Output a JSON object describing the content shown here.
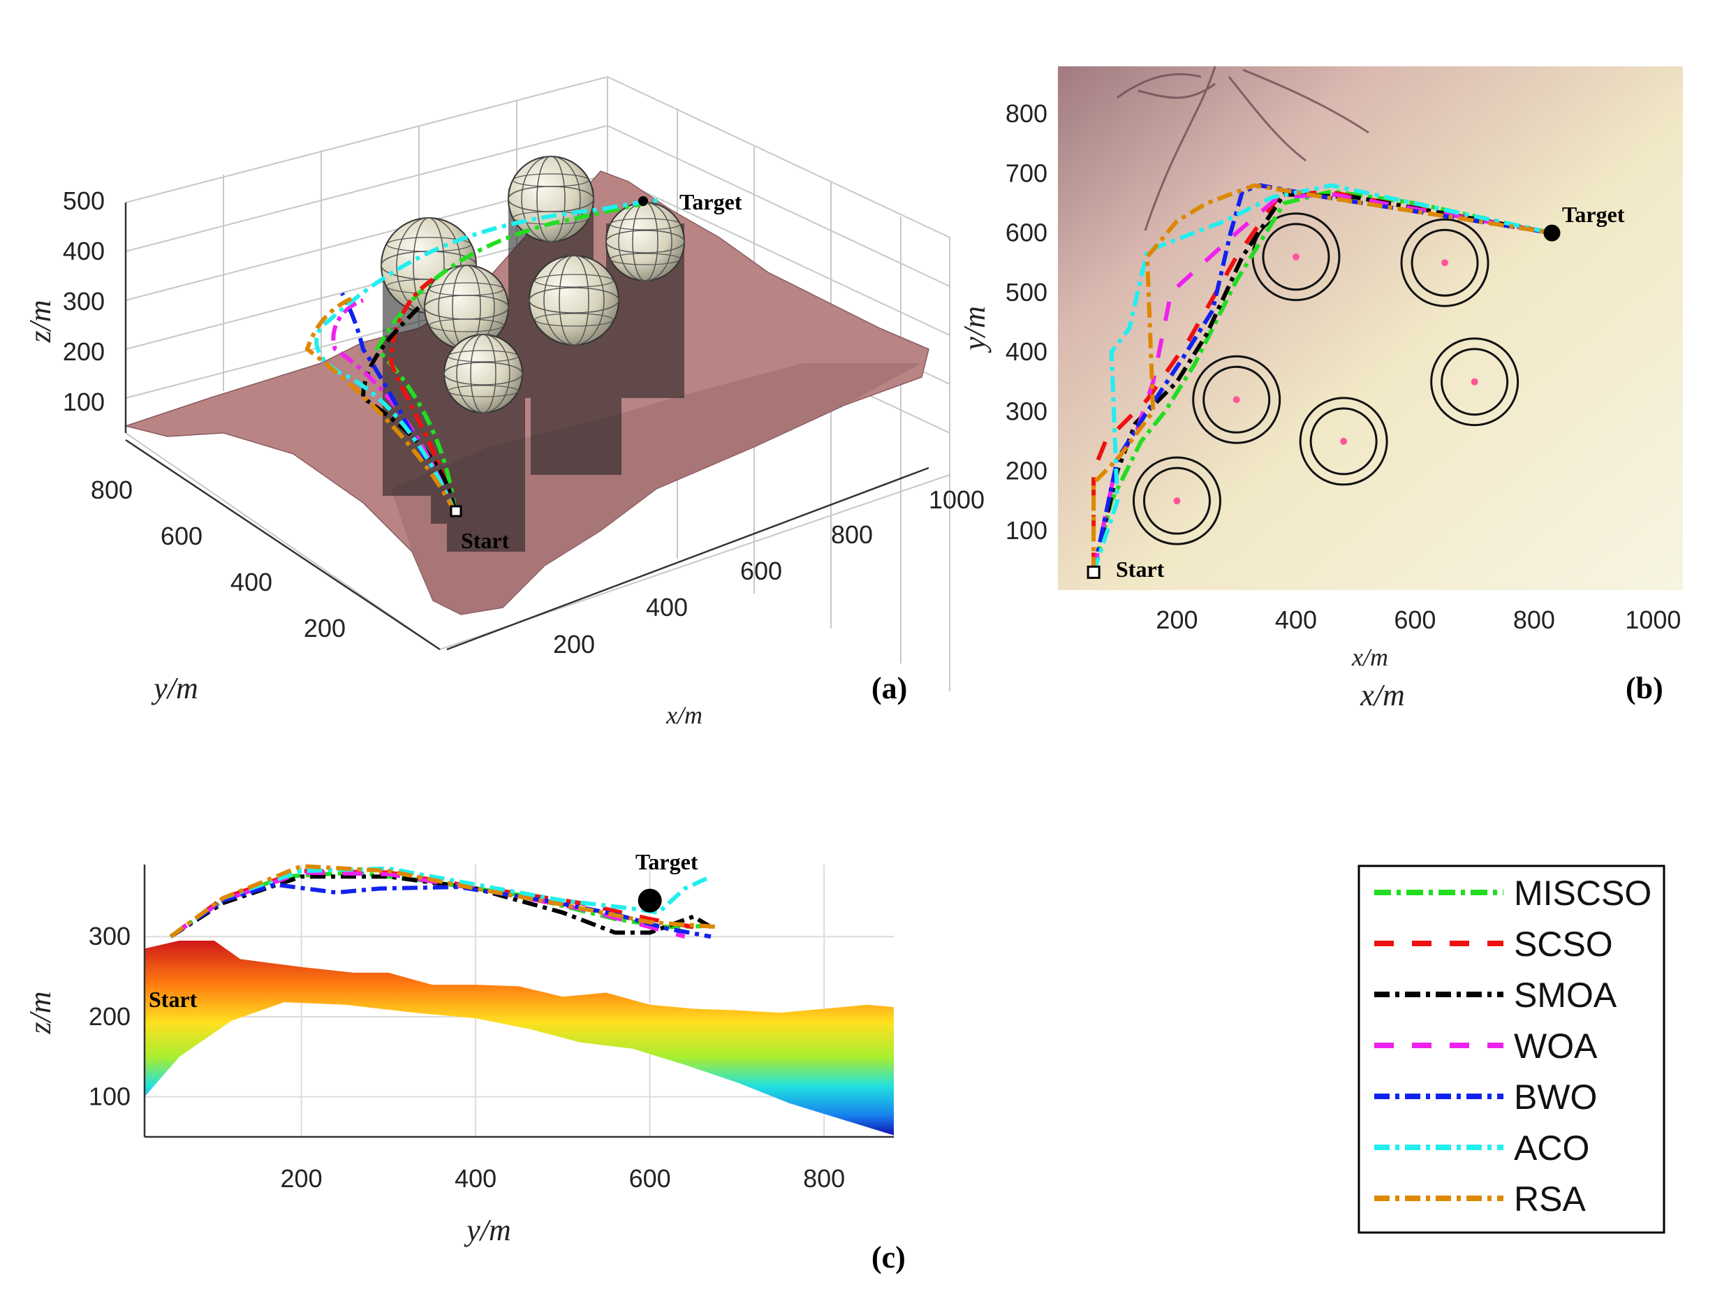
{
  "colors": {
    "MISCSO": "#22dd22",
    "SCSO": "#ee1111",
    "SMOA": "#000000",
    "WOA": "#ee22ee",
    "BWO": "#1122ee",
    "ACO": "#22eeee",
    "RSA": "#dd8800",
    "terrain3d": "#b98484",
    "map_light": "#f3ecc4",
    "map_dark": "#8c5a62",
    "obstacle": "#e8e5d6"
  },
  "chart_data": [
    {
      "type": "line",
      "panel": "(a)",
      "title": "",
      "xlabel": "x/m",
      "ylabel": "y/m",
      "zlabel": "z/m",
      "x_ticks": [
        "200",
        "400",
        "600",
        "800",
        "1000"
      ],
      "y_ticks": [
        "200",
        "400",
        "600",
        "800"
      ],
      "z_ticks": [
        "100",
        "200",
        "300",
        "400",
        "500"
      ],
      "annotations": [
        "Start",
        "Target"
      ],
      "obstacles_xy": [
        [
          200,
          150
        ],
        [
          300,
          320
        ],
        [
          480,
          250
        ],
        [
          700,
          350
        ],
        [
          400,
          560
        ],
        [
          650,
          550
        ]
      ],
      "series": [
        "MISCSO",
        "SCSO",
        "SMOA",
        "WOA",
        "BWO",
        "ACO",
        "RSA"
      ]
    },
    {
      "type": "line",
      "panel": "(b)",
      "title": "",
      "xlabel": "x/m",
      "ylabel": "y/m",
      "xlim": [
        0,
        1050
      ],
      "ylim": [
        0,
        880
      ],
      "x_ticks": [
        200,
        400,
        600,
        800,
        1000
      ],
      "y_ticks": [
        100,
        200,
        300,
        400,
        500,
        600,
        700,
        800
      ],
      "start": [
        60,
        30
      ],
      "target": [
        830,
        600
      ],
      "annotations": [
        "Start",
        "Target"
      ],
      "obstacles": [
        [
          200,
          150
        ],
        [
          300,
          320
        ],
        [
          480,
          250
        ],
        [
          700,
          350
        ],
        [
          400,
          560
        ],
        [
          650,
          550
        ]
      ],
      "series": [
        {
          "name": "MISCSO",
          "points": [
            [
              60,
              30
            ],
            [
              90,
              150
            ],
            [
              140,
              250
            ],
            [
              180,
              300
            ],
            [
              230,
              380
            ],
            [
              300,
              520
            ],
            [
              380,
              650
            ],
            [
              460,
              670
            ],
            [
              600,
              650
            ],
            [
              830,
              600
            ]
          ]
        },
        {
          "name": "SCSO",
          "points": [
            [
              60,
              30
            ],
            [
              60,
              200
            ],
            [
              80,
              250
            ],
            [
              150,
              320
            ],
            [
              220,
              420
            ],
            [
              300,
              560
            ],
            [
              370,
              660
            ],
            [
              450,
              670
            ],
            [
              830,
              600
            ]
          ]
        },
        {
          "name": "SMOA",
          "points": [
            [
              60,
              30
            ],
            [
              100,
              200
            ],
            [
              130,
              280
            ],
            [
              200,
              350
            ],
            [
              250,
              430
            ],
            [
              310,
              560
            ],
            [
              380,
              665
            ],
            [
              500,
              660
            ],
            [
              830,
              600
            ]
          ]
        },
        {
          "name": "WOA",
          "points": [
            [
              60,
              30
            ],
            [
              100,
              220
            ],
            [
              130,
              260
            ],
            [
              160,
              350
            ],
            [
              190,
              500
            ],
            [
              300,
              600
            ],
            [
              370,
              660
            ],
            [
              460,
              665
            ],
            [
              830,
              600
            ]
          ]
        },
        {
          "name": "BWO",
          "points": [
            [
              60,
              30
            ],
            [
              100,
              220
            ],
            [
              150,
              300
            ],
            [
              210,
              390
            ],
            [
              260,
              470
            ],
            [
              290,
              600
            ],
            [
              310,
              670
            ],
            [
              340,
              680
            ],
            [
              450,
              660
            ],
            [
              830,
              600
            ]
          ]
        },
        {
          "name": "ACO",
          "points": [
            [
              60,
              30
            ],
            [
              100,
              150
            ],
            [
              90,
              400
            ],
            [
              120,
              440
            ],
            [
              150,
              570
            ],
            [
              280,
              620
            ],
            [
              360,
              660
            ],
            [
              460,
              680
            ],
            [
              830,
              600
            ]
          ]
        },
        {
          "name": "RSA",
          "points": [
            [
              60,
              30
            ],
            [
              60,
              180
            ],
            [
              100,
              220
            ],
            [
              160,
              300
            ],
            [
              150,
              560
            ],
            [
              200,
              620
            ],
            [
              250,
              650
            ],
            [
              330,
              680
            ],
            [
              450,
              660
            ],
            [
              830,
              600
            ]
          ]
        }
      ]
    },
    {
      "type": "line",
      "panel": "(c)",
      "title": "",
      "xlabel": "y/m",
      "ylabel": "z/m",
      "xlim": [
        20,
        880
      ],
      "ylim": [
        50,
        390
      ],
      "x_ticks": [
        200,
        400,
        600,
        800
      ],
      "y_ticks": [
        100,
        200,
        300
      ],
      "start": [
        50,
        300
      ],
      "target": [
        600,
        345
      ],
      "annotations": [
        "Start",
        "Target"
      ],
      "terrain_top": [
        [
          20,
          285
        ],
        [
          60,
          295
        ],
        [
          100,
          295
        ],
        [
          130,
          272
        ],
        [
          200,
          262
        ],
        [
          260,
          255
        ],
        [
          300,
          255
        ],
        [
          350,
          240
        ],
        [
          400,
          240
        ],
        [
          450,
          238
        ],
        [
          500,
          225
        ],
        [
          550,
          230
        ],
        [
          600,
          215
        ],
        [
          650,
          210
        ],
        [
          700,
          208
        ],
        [
          750,
          205
        ],
        [
          800,
          210
        ],
        [
          850,
          215
        ],
        [
          880,
          212
        ]
      ],
      "terrain_bottom": [
        [
          20,
          100
        ],
        [
          60,
          150
        ],
        [
          120,
          195
        ],
        [
          180,
          218
        ],
        [
          250,
          215
        ],
        [
          330,
          205
        ],
        [
          400,
          198
        ],
        [
          460,
          185
        ],
        [
          520,
          168
        ],
        [
          580,
          160
        ],
        [
          640,
          140
        ],
        [
          700,
          118
        ],
        [
          760,
          92
        ],
        [
          820,
          72
        ],
        [
          880,
          52
        ]
      ],
      "series": [
        {
          "name": "MISCSO",
          "points": [
            [
              50,
              300
            ],
            [
              110,
              345
            ],
            [
              180,
              375
            ],
            [
              260,
              380
            ],
            [
              340,
              370
            ],
            [
              450,
              352
            ],
            [
              560,
              322
            ],
            [
              620,
              312
            ],
            [
              660,
              313
            ]
          ]
        },
        {
          "name": "SCSO",
          "points": [
            [
              50,
              300
            ],
            [
              110,
              348
            ],
            [
              200,
              382
            ],
            [
              300,
              380
            ],
            [
              400,
              362
            ],
            [
              520,
              342
            ],
            [
              600,
              322
            ],
            [
              650,
              312
            ]
          ]
        },
        {
          "name": "SMOA",
          "points": [
            [
              50,
              300
            ],
            [
              110,
              342
            ],
            [
              200,
              375
            ],
            [
              300,
              375
            ],
            [
              400,
              360
            ],
            [
              500,
              330
            ],
            [
              560,
              305
            ],
            [
              600,
              305
            ],
            [
              650,
              325
            ],
            [
              670,
              312
            ]
          ]
        },
        {
          "name": "WOA",
          "points": [
            [
              50,
              300
            ],
            [
              110,
              345
            ],
            [
              200,
              380
            ],
            [
              300,
              378
            ],
            [
              400,
              360
            ],
            [
              520,
              335
            ],
            [
              600,
              312
            ],
            [
              640,
              300
            ]
          ]
        },
        {
          "name": "BWO",
          "points": [
            [
              50,
              300
            ],
            [
              110,
              345
            ],
            [
              170,
              365
            ],
            [
              240,
              355
            ],
            [
              290,
              360
            ],
            [
              380,
              362
            ],
            [
              480,
              345
            ],
            [
              560,
              328
            ],
            [
              620,
              310
            ],
            [
              670,
              300
            ]
          ]
        },
        {
          "name": "ACO",
          "points": [
            [
              50,
              300
            ],
            [
              110,
              348
            ],
            [
              200,
              382
            ],
            [
              300,
              385
            ],
            [
              400,
              365
            ],
            [
              500,
              345
            ],
            [
              580,
              335
            ],
            [
              610,
              330
            ],
            [
              640,
              360
            ],
            [
              670,
              375
            ]
          ]
        },
        {
          "name": "RSA",
          "points": [
            [
              50,
              300
            ],
            [
              110,
              348
            ],
            [
              200,
              388
            ],
            [
              300,
              382
            ],
            [
              400,
              360
            ],
            [
              500,
              340
            ],
            [
              600,
              318
            ],
            [
              680,
              312
            ]
          ]
        }
      ]
    }
  ],
  "panels": {
    "a": {
      "label": "(a)",
      "xlabel": "x/m",
      "ylabel": "y/m",
      "zlabel": "z/m",
      "start": "Start",
      "target": "Target"
    },
    "b": {
      "label": "(b)",
      "xlabel_small": "x/m",
      "xlabel": "x/m",
      "ylabel": "y/m",
      "start": "Start",
      "target": "Target"
    },
    "c": {
      "label": "(c)",
      "xlabel": "y/m",
      "ylabel": "z/m",
      "start": "Start",
      "target": "Target"
    }
  },
  "legend": [
    "MISCSO",
    "SCSO",
    "SMOA",
    "WOA",
    "BWO",
    "ACO",
    "RSA"
  ]
}
